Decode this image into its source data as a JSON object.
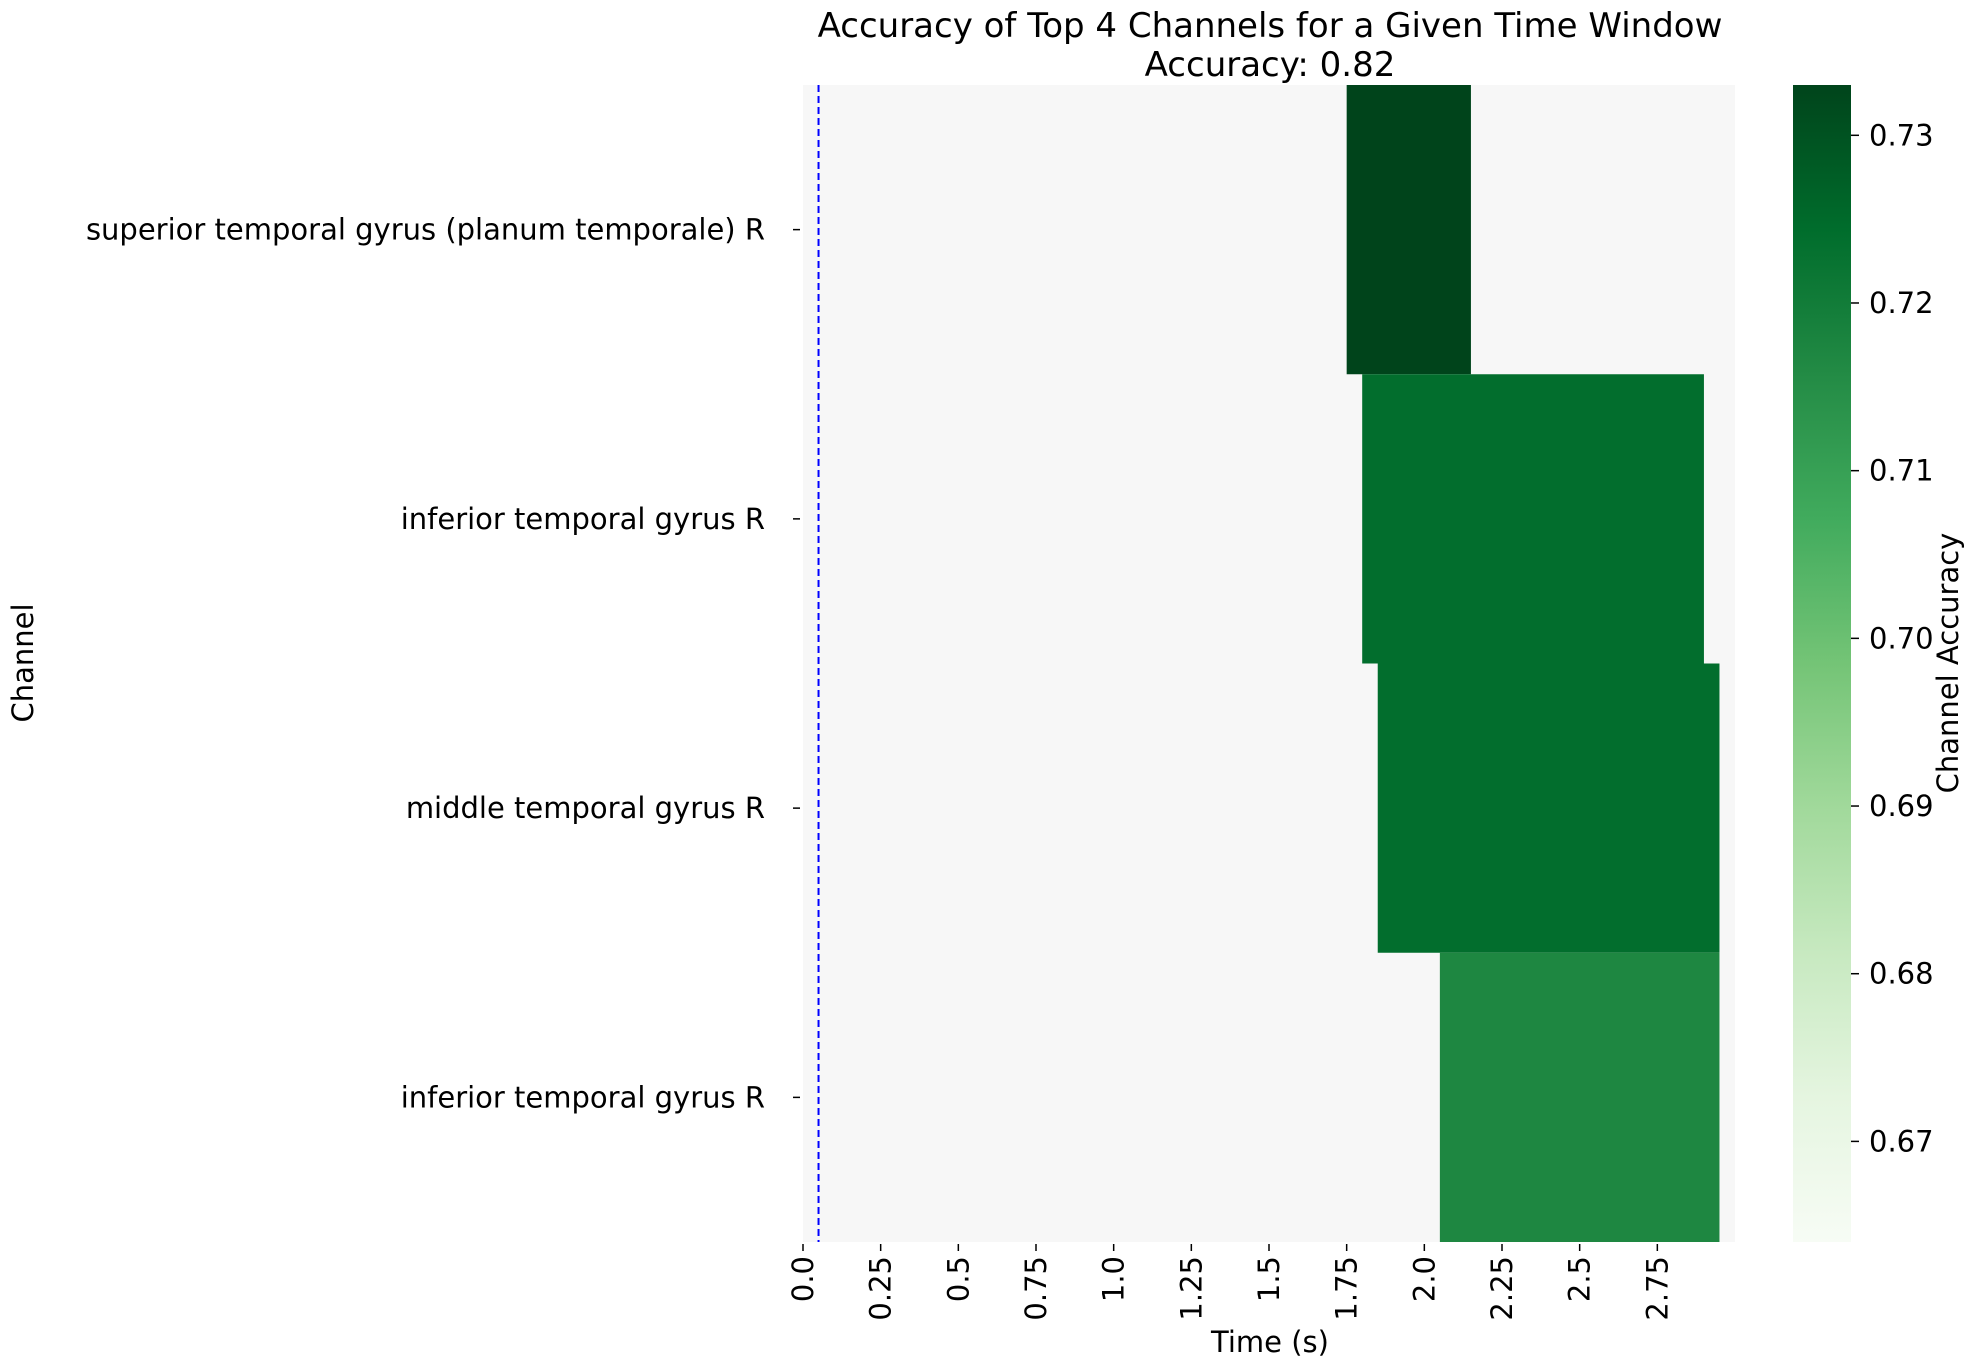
{
  "chart_data": {
    "type": "heatmap",
    "title": "Accuracy of Top 4 Channels for a Given Time Window",
    "subtitle": "Accuracy: 0.82",
    "xlabel": "Time (s)",
    "ylabel": "Channel",
    "x_tick_labels": [
      "0.0",
      "0.25",
      "0.5",
      "0.75",
      "1.0",
      "1.25",
      "1.5",
      "1.75",
      "2.0",
      "2.25",
      "2.5",
      "2.75"
    ],
    "x_tick_values": [
      0.0,
      0.25,
      0.5,
      0.75,
      1.0,
      1.25,
      1.5,
      1.75,
      2.0,
      2.25,
      2.5,
      2.75
    ],
    "xlim": [
      0.0,
      3.0
    ],
    "channels": [
      "superior temporal gyrus (planum temporale) R",
      "inferior temporal gyrus R",
      "middle temporal gyrus R",
      "inferior temporal gyrus R"
    ],
    "windows": [
      {
        "channel_index": 0,
        "x_start": 1.75,
        "x_end": 2.15,
        "accuracy": 0.733
      },
      {
        "channel_index": 1,
        "x_start": 1.8,
        "x_end": 2.9,
        "accuracy": 0.724
      },
      {
        "channel_index": 2,
        "x_start": 1.85,
        "x_end": 2.95,
        "accuracy": 0.724
      },
      {
        "channel_index": 3,
        "x_start": 2.05,
        "x_end": 2.95,
        "accuracy": 0.717
      }
    ],
    "background_value": 0.664,
    "reference_line": {
      "x": 0.05,
      "color": "#0000ff",
      "style": "dashed"
    },
    "colorbar": {
      "label": "Channel Accuracy",
      "range": [
        0.664,
        0.733
      ],
      "ticks": [
        0.67,
        0.68,
        0.69,
        0.7,
        0.71,
        0.72,
        0.73
      ],
      "tick_labels": [
        "0.67",
        "0.68",
        "0.69",
        "0.70",
        "0.71",
        "0.72",
        "0.73"
      ],
      "colormap": "Greens"
    },
    "colors": {
      "background_cell": "#f7f7f7",
      "cmap_low": "#f7fcf5",
      "cmap_high": "#00441b"
    },
    "grid": false
  }
}
